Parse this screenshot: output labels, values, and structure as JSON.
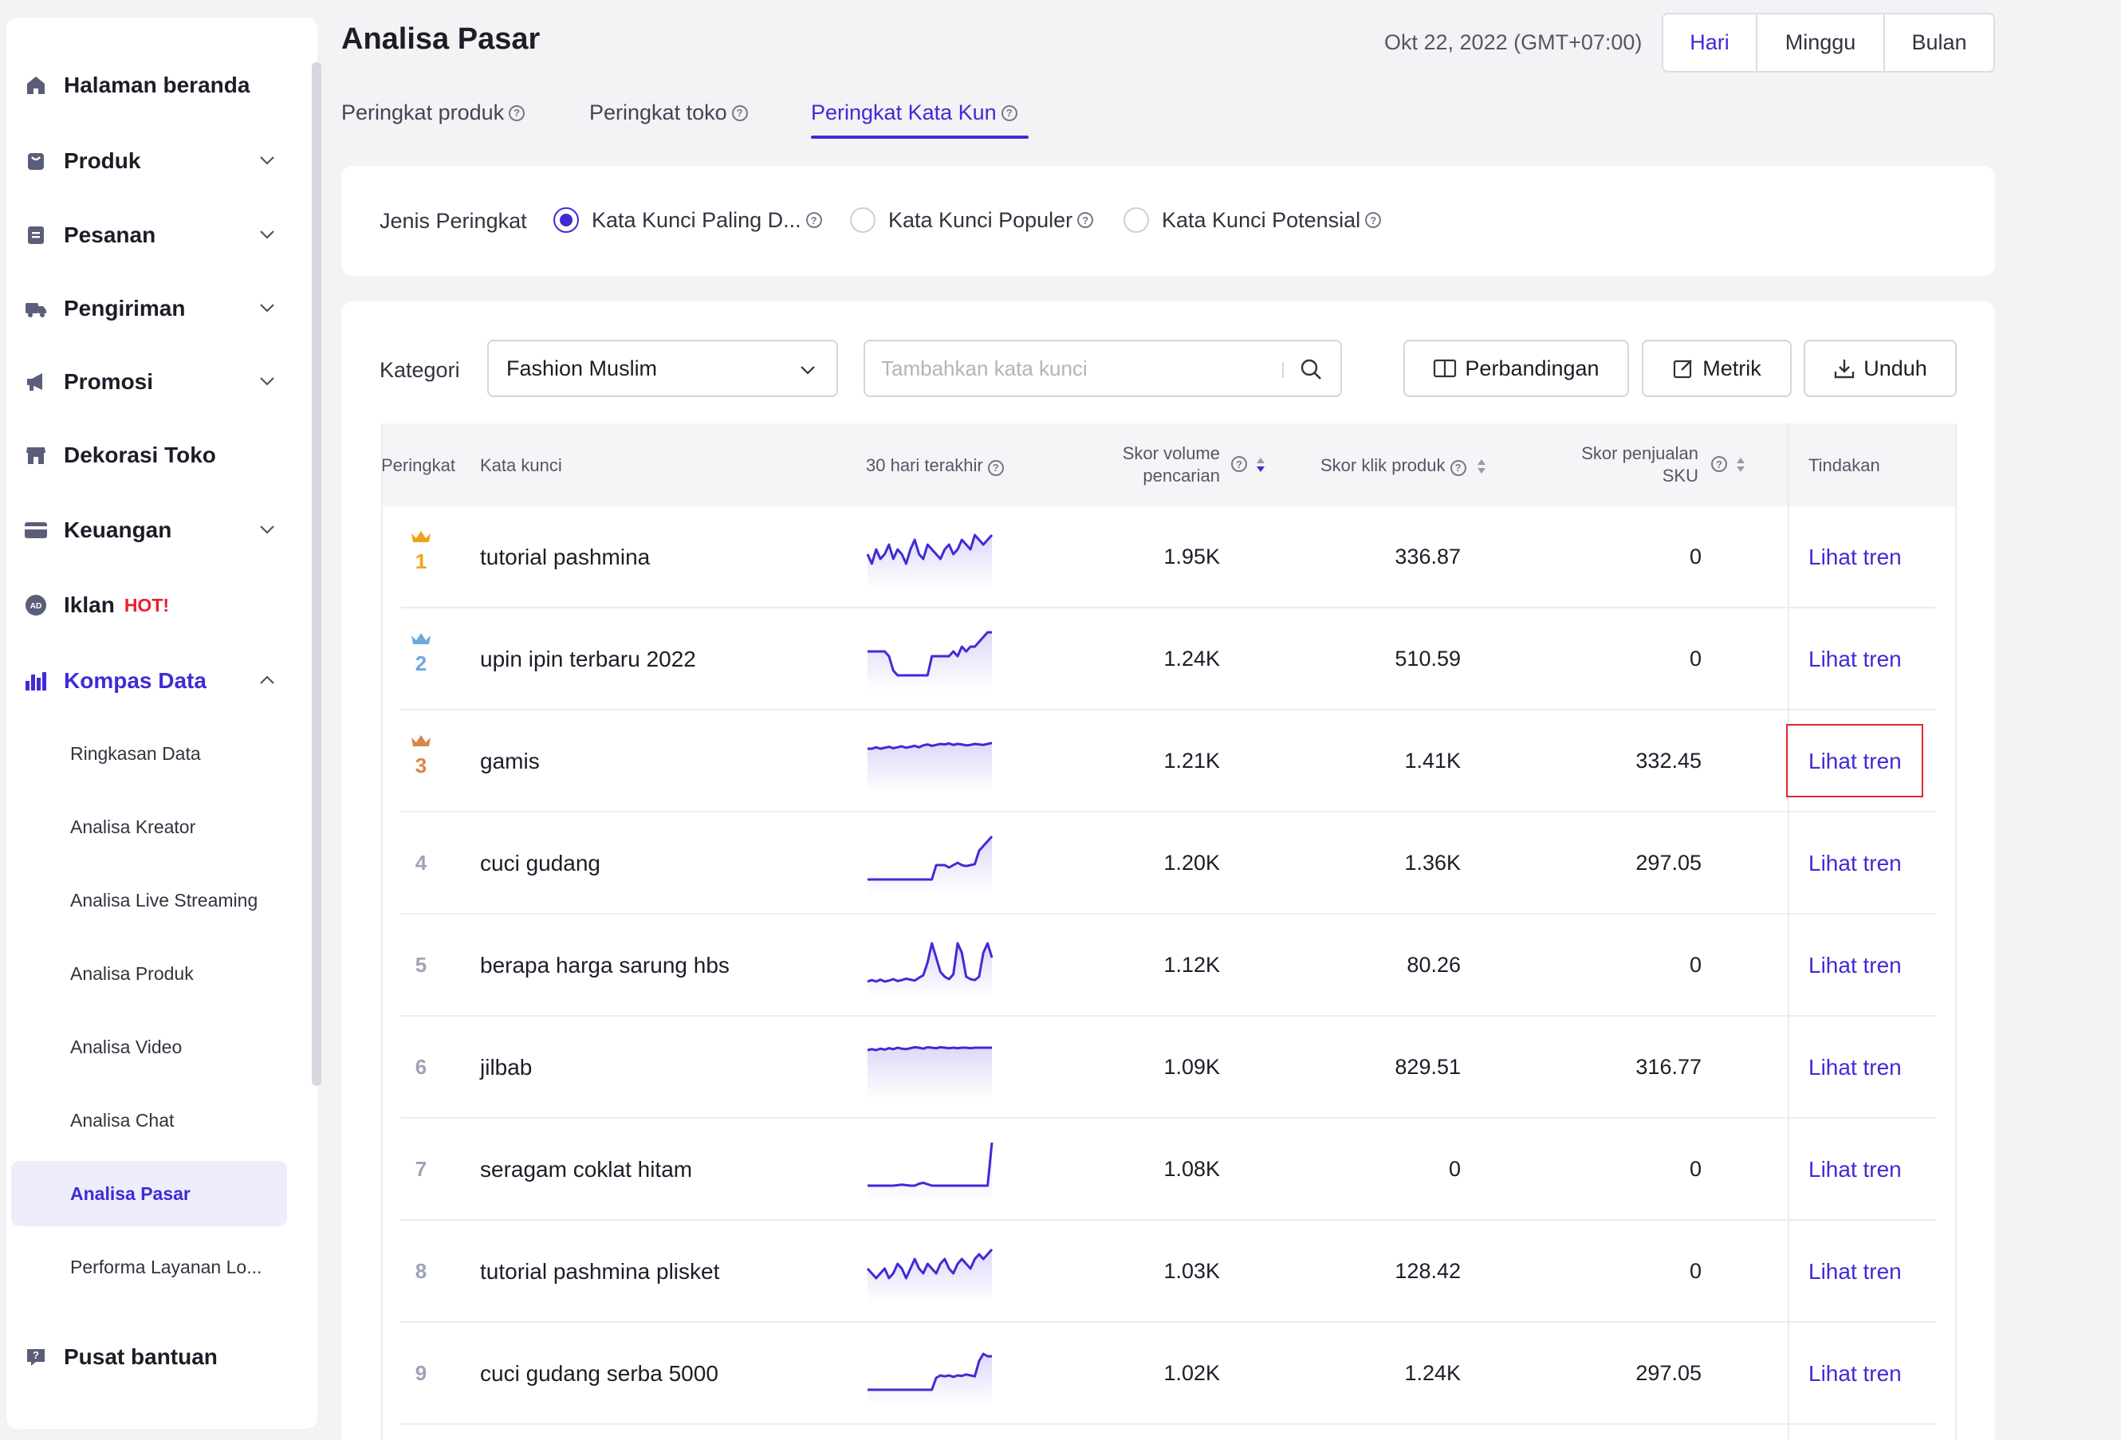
{
  "sidebar": {
    "items": [
      {
        "label": "Halaman beranda",
        "icon": "home-icon"
      },
      {
        "label": "Produk",
        "icon": "bag-icon"
      },
      {
        "label": "Pesanan",
        "icon": "order-icon"
      },
      {
        "label": "Pengiriman",
        "icon": "truck-icon"
      },
      {
        "label": "Promosi",
        "icon": "megaphone-icon"
      },
      {
        "label": "Dekorasi Toko",
        "icon": "store-icon"
      },
      {
        "label": "Keuangan",
        "icon": "card-icon"
      },
      {
        "label": "Iklan",
        "icon": "ad-icon",
        "badge": "HOT!"
      },
      {
        "label": "Kompas Data",
        "icon": "chart-icon"
      },
      {
        "label": "Pusat bantuan",
        "icon": "help-icon"
      }
    ],
    "sub_items": [
      "Ringkasan Data",
      "Analisa Kreator",
      "Analisa Live Streaming",
      "Analisa Produk",
      "Analisa Video",
      "Analisa Chat",
      "Analisa Pasar",
      "Performa Layanan Lo..."
    ],
    "active_sub": "Analisa Pasar"
  },
  "header": {
    "title": "Analisa Pasar",
    "date": "Okt 22, 2022 (GMT+07:00)",
    "period_buttons": [
      "Hari",
      "Minggu",
      "Bulan"
    ],
    "active_period": "Hari"
  },
  "tabs": [
    {
      "label": "Peringkat produk"
    },
    {
      "label": "Peringkat toko"
    },
    {
      "label": "Peringkat Kata Kun",
      "active": true
    }
  ],
  "filter": {
    "label": "Jenis Peringkat",
    "options": [
      "Kata Kunci Paling D...",
      "Kata Kunci Populer",
      "Kata Kunci Potensial"
    ],
    "selected": 0
  },
  "toolbar": {
    "category_label": "Kategori",
    "category_value": "Fashion Muslim",
    "search_placeholder": "Tambahkan kata kunci",
    "compare_label": "Perbandingan",
    "metric_label": "Metrik",
    "download_label": "Unduh"
  },
  "table": {
    "columns": {
      "rank": "Peringkat",
      "keyword": "Kata kunci",
      "trend": "30 hari terakhir",
      "volume_1": "Skor volume",
      "volume_2": "pencarian",
      "click": "Skor klik produk",
      "sales_1": "Skor penjualan",
      "sales_2": "SKU",
      "action": "Tindakan"
    },
    "rows": [
      {
        "rank": "1",
        "keyword": "tutorial pashmina",
        "volume": "1.95K",
        "click": "336.87",
        "sales": "0",
        "action": "Lihat tren",
        "trend": [
          5,
          3,
          6,
          4,
          5,
          7,
          4,
          6,
          5,
          3,
          6,
          8,
          5,
          4,
          7,
          6,
          5,
          4,
          6,
          7,
          5,
          6,
          8,
          7,
          6,
          9,
          8,
          7,
          8,
          9
        ]
      },
      {
        "rank": "2",
        "keyword": "upin ipin terbaru 2022",
        "volume": "1.24K",
        "click": "510.59",
        "sales": "0",
        "action": "Lihat tren",
        "trend": [
          6,
          6,
          6,
          6,
          6,
          5,
          2,
          1,
          1,
          1,
          1,
          1,
          1,
          1,
          1,
          5,
          5,
          5,
          5,
          5,
          6,
          5,
          7,
          6,
          7,
          7,
          8,
          9,
          10,
          10
        ]
      },
      {
        "rank": "3",
        "keyword": "gamis",
        "volume": "1.21K",
        "click": "1.41K",
        "sales": "332.45",
        "action": "Lihat tren",
        "trend": [
          7,
          7,
          7.3,
          7,
          7.2,
          7.4,
          7.1,
          7.3,
          7.5,
          7.2,
          7.4,
          7.6,
          7.3,
          7.7,
          7.9,
          7.6,
          7.8,
          8,
          7.9,
          8.1,
          7.8,
          8,
          7.9,
          7.7,
          7.8,
          8,
          7.9,
          7.8,
          8,
          8.2
        ]
      },
      {
        "rank": "4",
        "keyword": "cuci gudang",
        "volume": "1.20K",
        "click": "1.36K",
        "sales": "297.05",
        "action": "Lihat tren",
        "trend": [
          1,
          1,
          1,
          1,
          1,
          1,
          1,
          1,
          1,
          1,
          1,
          1,
          1,
          1,
          1,
          1,
          4,
          4,
          4,
          3.5,
          4,
          4.5,
          4,
          3.8,
          4,
          4.2,
          7,
          8,
          9,
          10
        ]
      },
      {
        "rank": "5",
        "keyword": "berapa harga sarung hbs",
        "volume": "1.12K",
        "click": "80.26",
        "sales": "0",
        "action": "Lihat tren",
        "trend": [
          1,
          1.3,
          1,
          1.4,
          1,
          1.2,
          1.5,
          1.1,
          1.3,
          1.6,
          1.4,
          1.2,
          1.8,
          2.3,
          5,
          9,
          6,
          3,
          2,
          1.5,
          2.5,
          9,
          7,
          2,
          1.5,
          1.3,
          2,
          7,
          9,
          6
        ]
      },
      {
        "rank": "6",
        "keyword": "jilbab",
        "volume": "1.09K",
        "click": "829.51",
        "sales": "316.77",
        "action": "Lihat tren",
        "trend": [
          8,
          8.2,
          8,
          8.3,
          8.1,
          8.4,
          8.2,
          8.5,
          8.3,
          8.2,
          8.4,
          8.6,
          8.5,
          8.3,
          8.6,
          8.5,
          8.4,
          8.6,
          8.5,
          8.4,
          8.5,
          8.4,
          8.5,
          8.5,
          8.4,
          8.5,
          8.5,
          8.5,
          8.5,
          8.5
        ]
      },
      {
        "rank": "7",
        "keyword": "seragam coklat hitam",
        "volume": "1.08K",
        "click": "0",
        "sales": "0",
        "action": "Lihat tren",
        "trend": [
          1,
          1,
          1,
          1,
          1,
          1,
          1,
          1.1,
          1.2,
          1.1,
          1,
          1,
          1.4,
          1.6,
          1.3,
          1,
          1,
          1,
          1,
          1,
          1,
          1,
          1,
          1,
          1,
          1,
          1,
          1,
          1,
          10
        ]
      },
      {
        "rank": "8",
        "keyword": "tutorial pashmina plisket",
        "volume": "1.03K",
        "click": "128.42",
        "sales": "0",
        "action": "Lihat tren",
        "trend": [
          5,
          4,
          3,
          4,
          5,
          3,
          4,
          6,
          5,
          3,
          5,
          7,
          5,
          4,
          6,
          5,
          4,
          6,
          7,
          5,
          4,
          6,
          7,
          6,
          5,
          7,
          8,
          7,
          8,
          9
        ]
      },
      {
        "rank": "9",
        "keyword": "cuci gudang serba 5000",
        "volume": "1.02K",
        "click": "1.24K",
        "sales": "297.05",
        "action": "Lihat tren",
        "trend": [
          1,
          1,
          1,
          1,
          1,
          1,
          1,
          1,
          1,
          1,
          1,
          1,
          1,
          1,
          1,
          1,
          3.5,
          4,
          3.8,
          4,
          3.7,
          4,
          3.9,
          4.2,
          4,
          3.8,
          7,
          8.5,
          8,
          8
        ]
      }
    ]
  },
  "colors": {
    "accent": "#3f2bd6",
    "highlight": "#e02a2a",
    "gold": "#f1a21a",
    "silver": "#6fa9dc",
    "bronze": "#d9864a"
  }
}
